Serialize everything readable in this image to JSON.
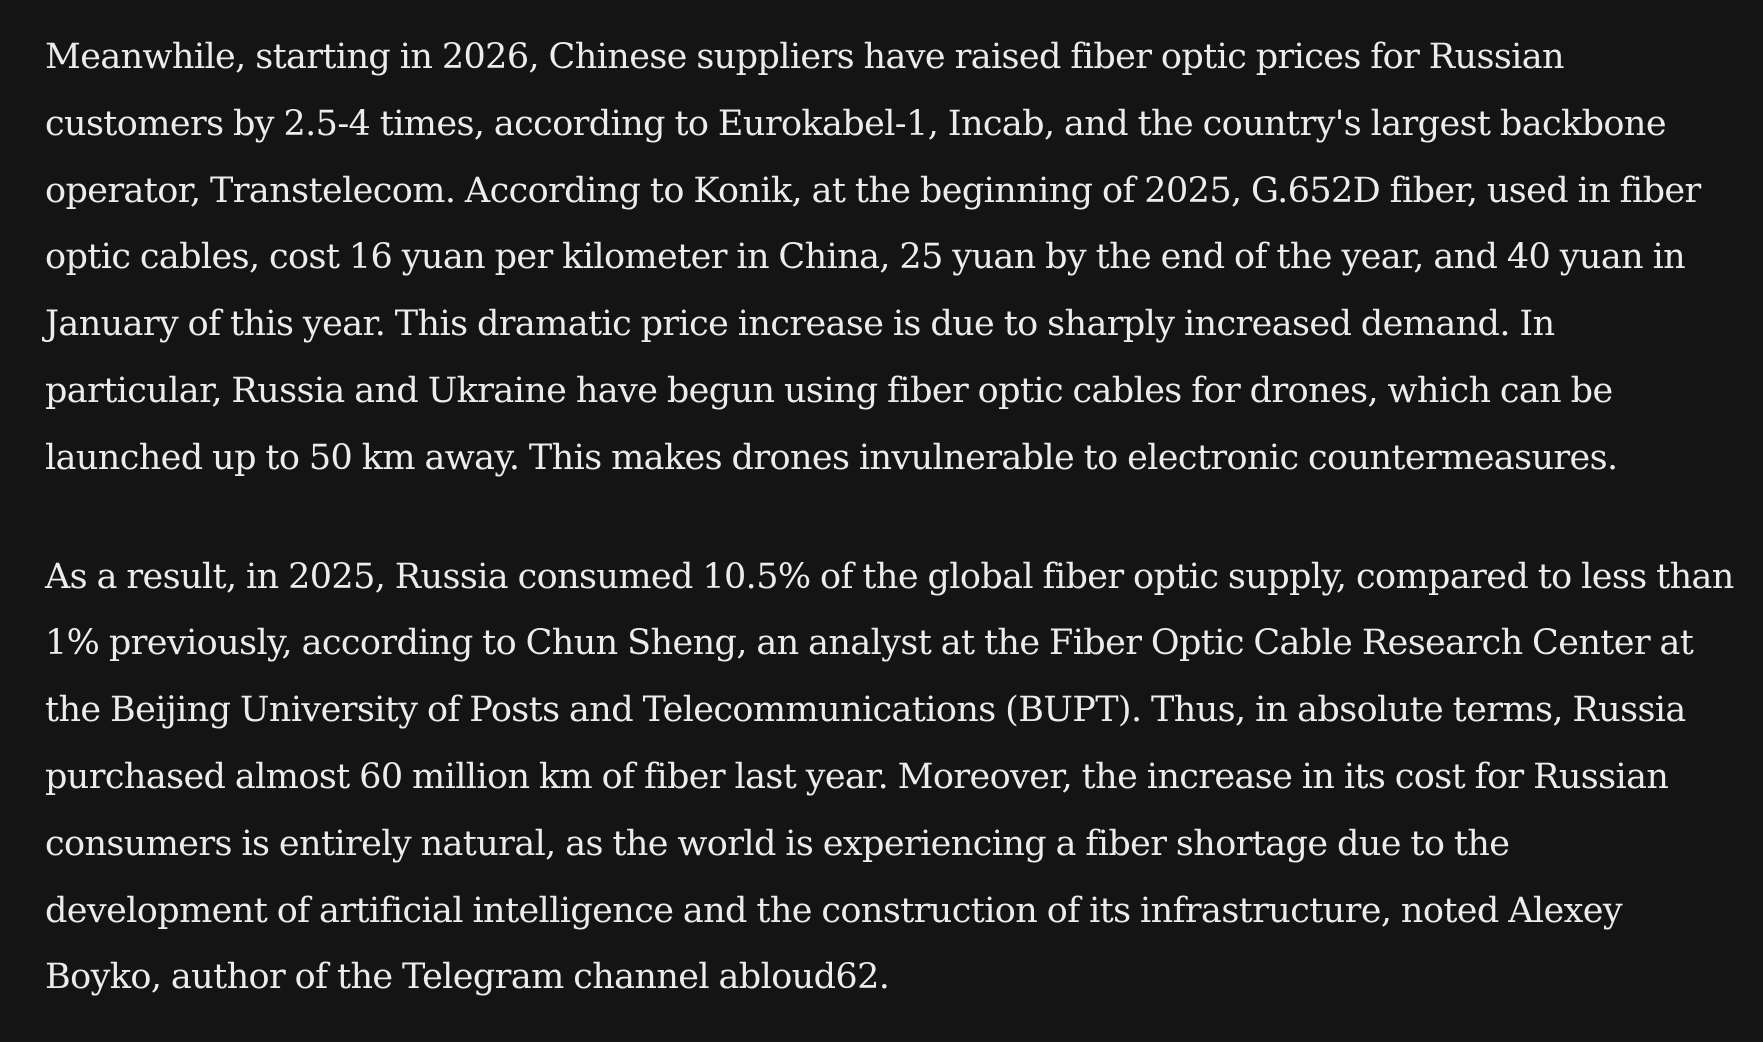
{
  "article": {
    "paragraphs": [
      "Meanwhile, starting in 2026, Chinese suppliers have raised fiber optic prices for Russian customers by 2.5-4 times, according to Eurokabel-1, Incab, and the country's largest backbone operator, Transtelecom. According to Konik, at the beginning of 2025, G.652D fiber, used in fiber optic cables, cost 16 yuan per kilometer in China, 25 yuan by the end of the year, and 40 yuan in January of this year. This dramatic price increase is due to sharply increased demand. In particular, Russia and Ukraine have begun using fiber optic cables for drones, which can be launched up to 50 km away. This makes drones invulnerable to electronic countermeasures.",
      "As a result, in 2025, Russia consumed 10.5% of the global fiber optic supply, compared to less than 1% previously, according to Chun Sheng, an analyst at the Fiber Optic Cable Research Center at the Beijing University of Posts and Telecommunications (BUPT). Thus, in absolute terms, Russia purchased almost 60 million km of fiber last year. Moreover, the increase in its cost for Russian consumers is entirely natural, as the world is experiencing a fiber shortage due to the development of artificial intelligence and the construction of its infrastructure, noted Alexey Boyko, author of the Telegram channel abloud62."
    ]
  },
  "colors": {
    "background": "#141414",
    "text": "#ececec"
  }
}
